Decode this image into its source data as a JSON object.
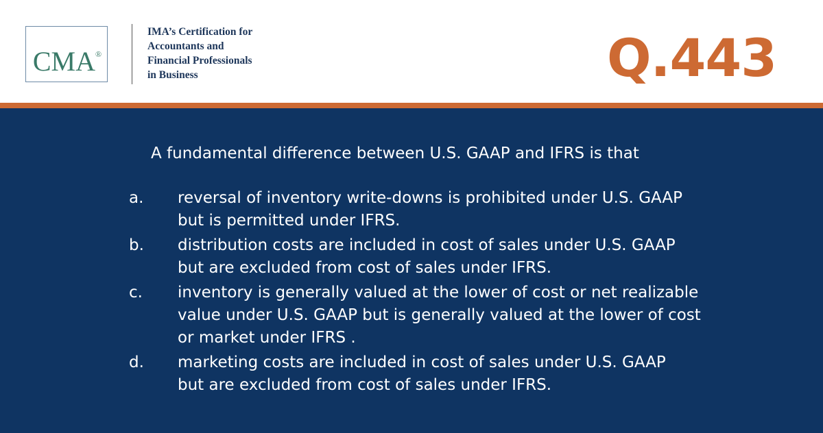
{
  "header": {
    "logo": {
      "text": "CMA",
      "mark": "®"
    },
    "tagline": [
      "IMA’s Certification for",
      "Accountants and",
      "Financial Professionals",
      "in Business"
    ],
    "question_number": "Q.443"
  },
  "question": {
    "stem": "A fundamental difference between U.S. GAAP and IFRS is that",
    "options": [
      {
        "letter": "a.",
        "lines": [
          "reversal of inventory write-downs is prohibited under U.S. GAAP",
          "but is permitted under IFRS."
        ]
      },
      {
        "letter": "b.",
        "lines": [
          "distribution costs are included in cost of sales under U.S. GAAP",
          "but are excluded from cost of sales under IFRS."
        ]
      },
      {
        "letter": "c.",
        "lines": [
          "inventory is generally valued at the lower of cost or net realizable",
          "value under U.S. GAAP but is generally valued at the lower of cost",
          "or market under IFRS ."
        ]
      },
      {
        "letter": "d.",
        "lines": [
          "marketing costs are included in cost of sales under U.S. GAAP",
          "but are excluded from cost of sales under IFRS."
        ]
      }
    ]
  }
}
